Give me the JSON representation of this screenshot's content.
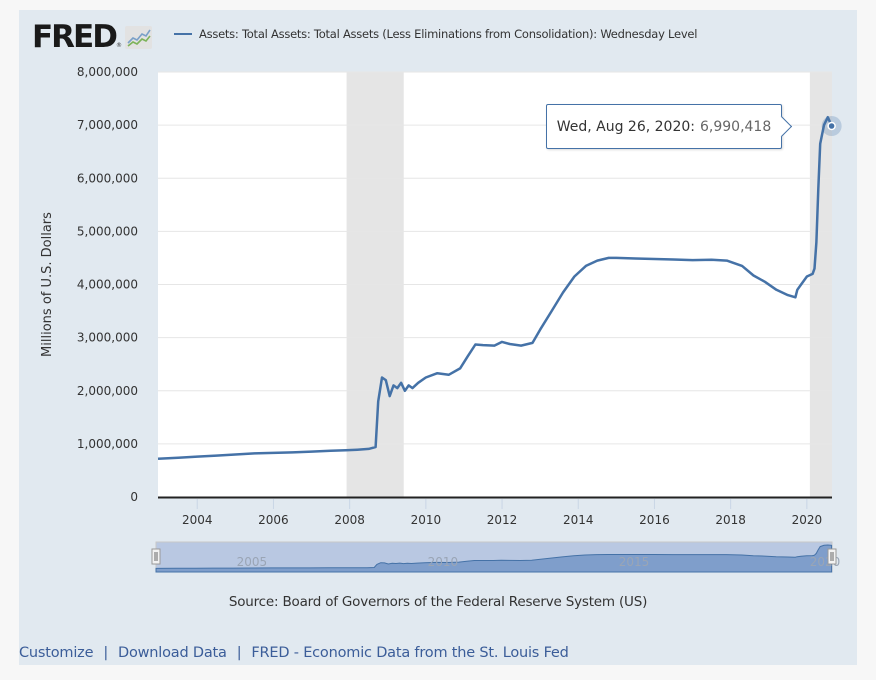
{
  "header": {
    "logo_text": "FRED",
    "logo_registered": "®",
    "legend_label": "Assets: Total Assets: Total Assets (Less Eliminations from Consolidation): Wednesday Level"
  },
  "tooltip": {
    "date": "Wed, Aug 26, 2020:",
    "value": "6,990,418"
  },
  "source": "Source: Board of Governors of the Federal Reserve System (US)",
  "footer": {
    "links": [
      "Customize",
      "Download Data",
      "FRED - Economic Data from the St. Louis Fed"
    ],
    "separator": "|"
  },
  "navigator": {
    "labels": [
      "2005",
      "2010",
      "2015",
      "2020"
    ]
  },
  "colors": {
    "series": "#4572a7",
    "recession": "#e5e5e5",
    "panel": "#e1e9f0",
    "link": "#3b5d99"
  },
  "chart_data": {
    "type": "line",
    "title": "",
    "xlabel": "",
    "ylabel": "Millions of U.S. Dollars",
    "xlim": [
      2002.97,
      2020.66
    ],
    "ylim": [
      0,
      8000000
    ],
    "grid": true,
    "legend": "top",
    "yticks": [
      0,
      1000000,
      2000000,
      3000000,
      4000000,
      5000000,
      6000000,
      7000000,
      8000000
    ],
    "ytick_labels": [
      "0",
      "1,000,000",
      "2,000,000",
      "3,000,000",
      "4,000,000",
      "5,000,000",
      "6,000,000",
      "7,000,000",
      "8,000,000"
    ],
    "xticks": [
      2004,
      2006,
      2008,
      2010,
      2012,
      2014,
      2016,
      2018,
      2020
    ],
    "xtick_labels": [
      "2004",
      "2006",
      "2008",
      "2010",
      "2012",
      "2014",
      "2016",
      "2018",
      "2020"
    ],
    "recessions": [
      [
        2007.92,
        2009.42
      ],
      [
        2020.08,
        2020.66
      ]
    ],
    "series": [
      {
        "name": "Assets: Total Assets: Total Assets (Less Eliminations from Consolidation): Wednesday Level",
        "x": [
          2002.97,
          2003.5,
          2004.0,
          2004.5,
          2005.0,
          2005.5,
          2006.0,
          2006.5,
          2007.0,
          2007.5,
          2007.9,
          2008.2,
          2008.5,
          2008.68,
          2008.75,
          2008.85,
          2008.95,
          2009.05,
          2009.15,
          2009.25,
          2009.35,
          2009.45,
          2009.55,
          2009.65,
          2009.8,
          2010.0,
          2010.3,
          2010.6,
          2010.9,
          2011.1,
          2011.3,
          2011.5,
          2011.8,
          2012.0,
          2012.2,
          2012.5,
          2012.8,
          2013.0,
          2013.3,
          2013.6,
          2013.9,
          2014.2,
          2014.5,
          2014.8,
          2015.0,
          2015.5,
          2016.0,
          2016.5,
          2017.0,
          2017.5,
          2017.9,
          2018.3,
          2018.6,
          2018.9,
          2019.2,
          2019.5,
          2019.7,
          2019.75,
          2019.85,
          2020.0,
          2020.15,
          2020.2,
          2020.25,
          2020.3,
          2020.35,
          2020.45,
          2020.55,
          2020.65
        ],
        "y": [
          720000,
          740000,
          760000,
          780000,
          800000,
          820000,
          830000,
          840000,
          855000,
          870000,
          880000,
          890000,
          905000,
          940000,
          1800000,
          2250000,
          2200000,
          1900000,
          2100000,
          2050000,
          2150000,
          2000000,
          2100000,
          2050000,
          2150000,
          2250000,
          2330000,
          2300000,
          2420000,
          2650000,
          2870000,
          2860000,
          2850000,
          2920000,
          2880000,
          2850000,
          2900000,
          3150000,
          3500000,
          3850000,
          4150000,
          4350000,
          4450000,
          4500000,
          4500000,
          4490000,
          4480000,
          4470000,
          4460000,
          4465000,
          4450000,
          4350000,
          4170000,
          4050000,
          3900000,
          3800000,
          3760000,
          3900000,
          4000000,
          4150000,
          4200000,
          4300000,
          4800000,
          5800000,
          6650000,
          7000000,
          7150000,
          6990418
        ]
      }
    ]
  }
}
